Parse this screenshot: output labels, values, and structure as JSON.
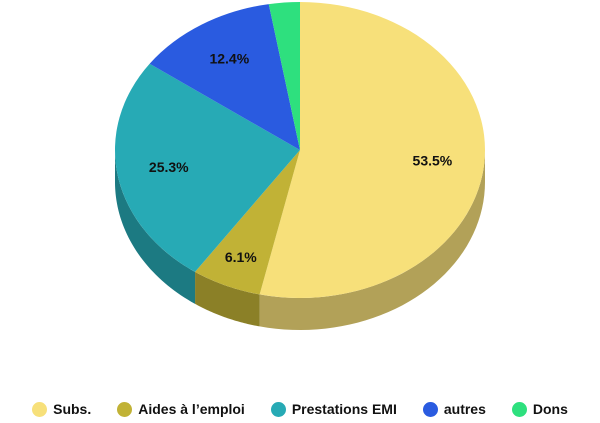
{
  "chart_data": {
    "type": "pie",
    "categories": [
      "Subs.",
      "Aides à l’emploi",
      "Prestations EMI",
      "autres",
      "Dons"
    ],
    "values": [
      53.5,
      6.1,
      25.3,
      12.4,
      2.7
    ],
    "value_labels": [
      "53.5%",
      "6.1%",
      "25.3%",
      "12.4%",
      null
    ],
    "colors": [
      "#f7e07a",
      "#c1b236",
      "#27aab5",
      "#2a5be0",
      "#2ee07e"
    ],
    "legend": "bottom"
  }
}
